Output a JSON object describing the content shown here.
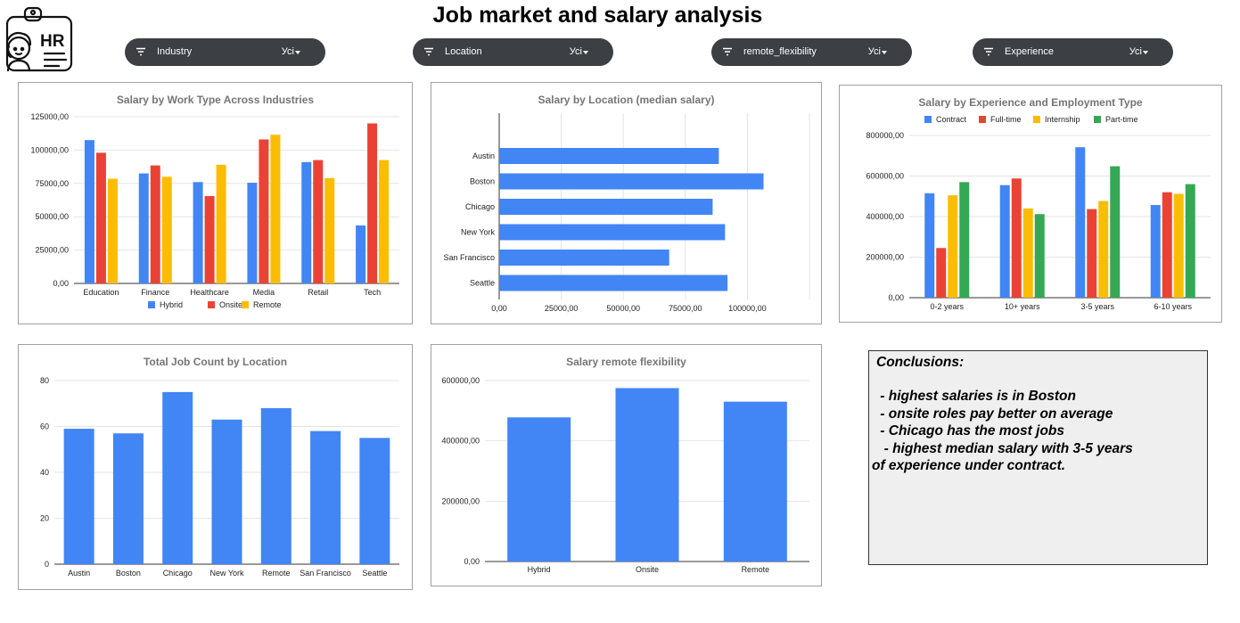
{
  "page_title": "Job market and salary analysis",
  "logo_text": "HR",
  "filters": [
    {
      "name": "Industry",
      "value": "Усі"
    },
    {
      "name": "Location",
      "value": "Усі"
    },
    {
      "name": "remote_flexibility",
      "value": "Усі"
    },
    {
      "name": "Experience",
      "value": "Усі"
    }
  ],
  "colors": {
    "blue": "#4285f4",
    "red": "#ea4335",
    "yellow": "#fbbc04",
    "green": "#34a853",
    "filter_bg": "#3c3f43"
  },
  "conclusions": {
    "heading": "Conclusions:",
    "lines": [
      " - highest salaries is in Boston",
      " - onsite roles pay better on average",
      " - Chicago has the most jobs",
      "  - highest median salary with 3-5 years",
      "of experience under contract."
    ]
  },
  "chart_data": [
    {
      "id": "work_type",
      "type": "bar",
      "title": "Salary by Work Type Across Industries",
      "categories": [
        "Education",
        "Finance",
        "Healthcare",
        "Media",
        "Retail",
        "Tech"
      ],
      "series": [
        {
          "name": "Hybrid",
          "color": "#4285f4",
          "values": [
            107500,
            82500,
            76000,
            75500,
            91000,
            43500
          ]
        },
        {
          "name": "Onsite",
          "color": "#ea4335",
          "values": [
            98000,
            88500,
            65500,
            108000,
            92500,
            120000
          ]
        },
        {
          "name": "Remote",
          "color": "#fbbc04",
          "values": [
            78500,
            80000,
            89000,
            111500,
            79000,
            92500
          ]
        }
      ],
      "ylim": [
        0,
        125000
      ],
      "yticks": [
        "0,00",
        "25000,00",
        "50000,00",
        "75000,00",
        "100000,00",
        "125000,00"
      ],
      "legend": "bottom",
      "grid": true
    },
    {
      "id": "location",
      "type": "bar",
      "orientation": "horizontal",
      "title": "Salary by Location (median salary)",
      "categories": [
        "Austin",
        "Boston",
        "Chicago",
        "New York",
        "San Francisco",
        "Seattle"
      ],
      "values": [
        88500,
        106500,
        86000,
        91000,
        68500,
        92000
      ],
      "xlim": [
        0,
        125000
      ],
      "xticks": [
        "0,00",
        "25000,00",
        "50000,00",
        "75000,00",
        "100000,00"
      ],
      "grid": true
    },
    {
      "id": "experience",
      "type": "bar",
      "title": "Salary by Experience and Employment Type",
      "categories": [
        "0-2 years",
        "10+ years",
        "3-5 years",
        "6-10 years"
      ],
      "series": [
        {
          "name": "Contract",
          "color": "#4285f4",
          "values": [
            515000,
            555000,
            742000,
            457000
          ]
        },
        {
          "name": "Full-time",
          "color": "#ea4335",
          "values": [
            245000,
            588000,
            437000,
            520000
          ]
        },
        {
          "name": "Internship",
          "color": "#fbbc04",
          "values": [
            505000,
            440000,
            477000,
            512000
          ]
        },
        {
          "name": "Part-time",
          "color": "#34a853",
          "values": [
            570000,
            412000,
            648000,
            560000
          ]
        }
      ],
      "ylim": [
        0,
        800000
      ],
      "yticks": [
        "0,00",
        "200000,00",
        "400000,00",
        "600000,00",
        "800000,00"
      ],
      "legend": "top",
      "grid": true
    },
    {
      "id": "job_count",
      "type": "bar",
      "title": "Total Job Count by Location",
      "categories": [
        "Austin",
        "Boston",
        "Chicago",
        "New York",
        "Remote",
        "San Francisco",
        "Seattle"
      ],
      "values": [
        59,
        57,
        75,
        63,
        68,
        58,
        55
      ],
      "ylim": [
        0,
        80
      ],
      "yticks": [
        "0",
        "20",
        "40",
        "60",
        "80"
      ],
      "grid": true
    },
    {
      "id": "remote_flex",
      "type": "bar",
      "title": "Salary remote flexibility",
      "categories": [
        "Hybrid",
        "Onsite",
        "Remote"
      ],
      "values": [
        478000,
        575000,
        530000
      ],
      "ylim": [
        0,
        600000
      ],
      "yticks": [
        "0,00",
        "200000,00",
        "400000,00",
        "600000,00"
      ],
      "grid": true
    }
  ]
}
